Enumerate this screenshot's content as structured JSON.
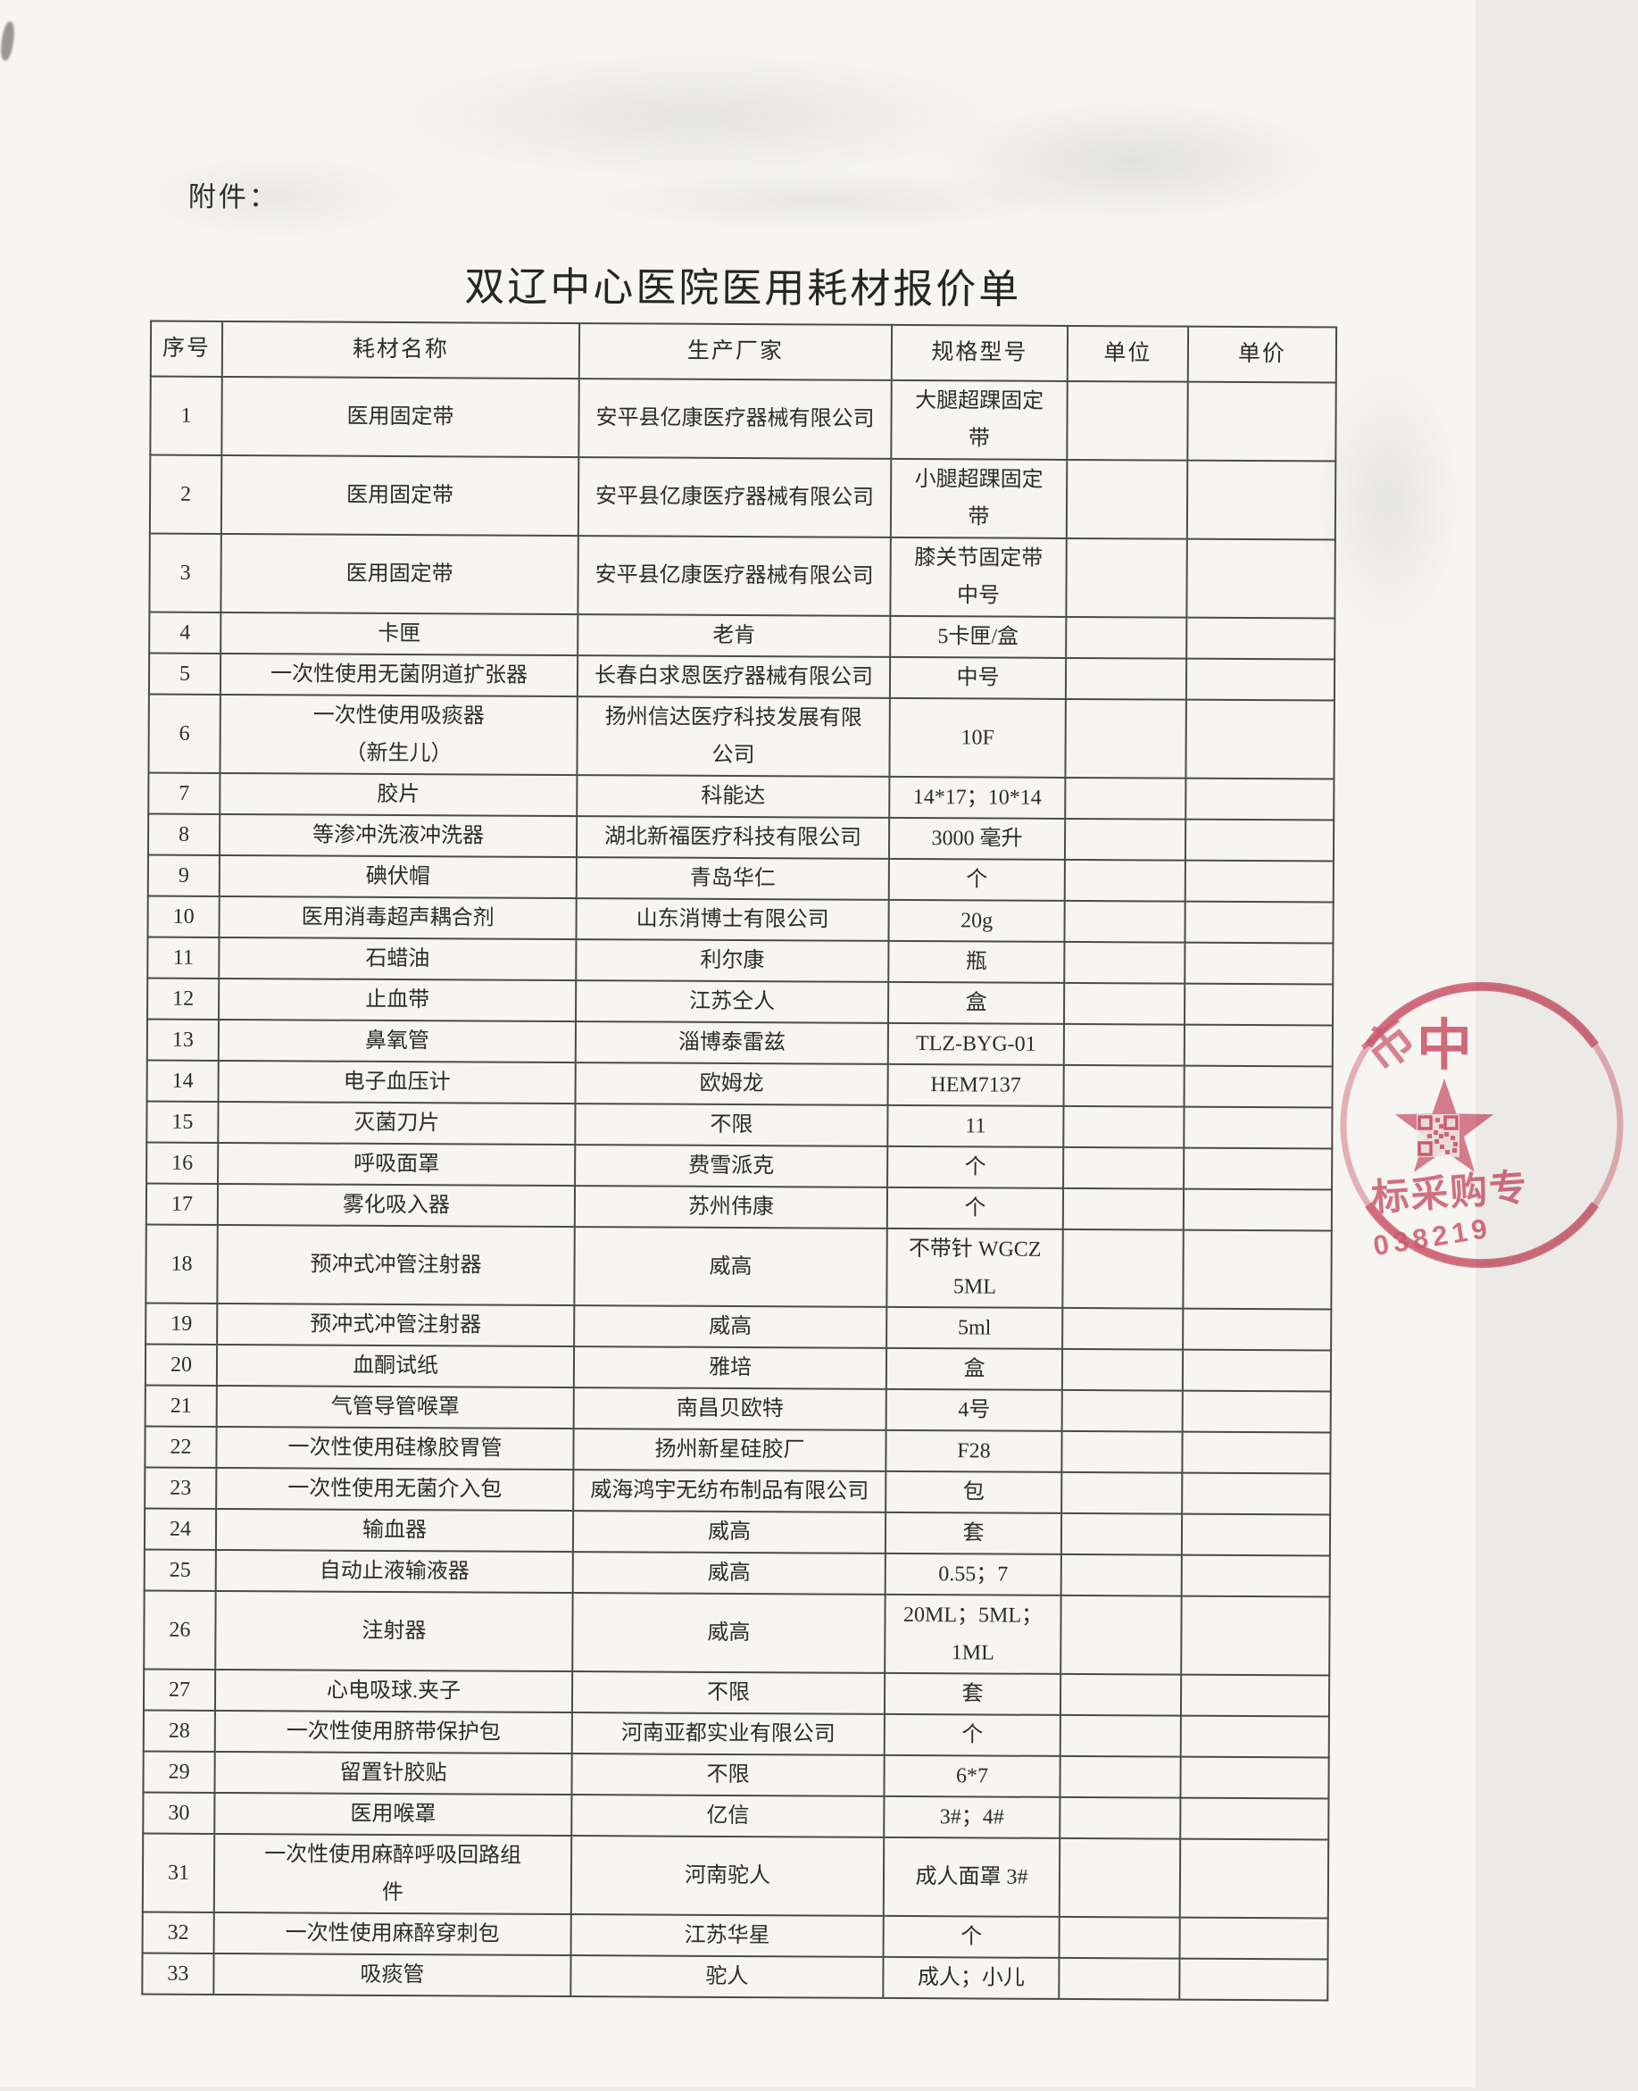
{
  "document": {
    "attachment_label": "附件：",
    "title": "双辽中心医院医用耗材报价单"
  },
  "table": {
    "headers": {
      "no": "序号",
      "name": "耗材名称",
      "manufacturer": "生产厂家",
      "spec": "规格型号",
      "unit": "单位",
      "price": "单价"
    },
    "rows": [
      {
        "no": "1",
        "name": "医用固定带",
        "manufacturer": "安平县亿康医疗器械有限公司",
        "spec": "大腿超踝固定\n带",
        "unit": "",
        "price": ""
      },
      {
        "no": "2",
        "name": "医用固定带",
        "manufacturer": "安平县亿康医疗器械有限公司",
        "spec": "小腿超踝固定\n带",
        "unit": "",
        "price": ""
      },
      {
        "no": "3",
        "name": "医用固定带",
        "manufacturer": "安平县亿康医疗器械有限公司",
        "spec": "膝关节固定带\n中号",
        "unit": "",
        "price": ""
      },
      {
        "no": "4",
        "name": "卡匣",
        "manufacturer": "老肯",
        "spec": "5卡匣/盒",
        "unit": "",
        "price": ""
      },
      {
        "no": "5",
        "name": "一次性使用无菌阴道扩张器",
        "manufacturer": "长春白求恩医疗器械有限公司",
        "spec": "中号",
        "unit": "",
        "price": ""
      },
      {
        "no": "6",
        "name": "一次性使用吸痰器\n（新生儿）",
        "manufacturer": "扬州信达医疗科技发展有限\n公司",
        "spec": "10F",
        "unit": "",
        "price": ""
      },
      {
        "no": "7",
        "name": "胶片",
        "manufacturer": "科能达",
        "spec": "14*17；10*14",
        "unit": "",
        "price": ""
      },
      {
        "no": "8",
        "name": "等渗冲洗液冲洗器",
        "manufacturer": "湖北新福医疗科技有限公司",
        "spec": "3000 毫升",
        "unit": "",
        "price": ""
      },
      {
        "no": "9",
        "name": "碘伏帽",
        "manufacturer": "青岛华仁",
        "spec": "个",
        "unit": "",
        "price": ""
      },
      {
        "no": "10",
        "name": "医用消毒超声耦合剂",
        "manufacturer": "山东消博士有限公司",
        "spec": "20g",
        "unit": "",
        "price": ""
      },
      {
        "no": "11",
        "name": "石蜡油",
        "manufacturer": "利尔康",
        "spec": "瓶",
        "unit": "",
        "price": ""
      },
      {
        "no": "12",
        "name": "止血带",
        "manufacturer": "江苏仝人",
        "spec": "盒",
        "unit": "",
        "price": ""
      },
      {
        "no": "13",
        "name": "鼻氧管",
        "manufacturer": "淄博泰雷兹",
        "spec": "TLZ-BYG-01",
        "unit": "",
        "price": ""
      },
      {
        "no": "14",
        "name": "电子血压计",
        "manufacturer": "欧姆龙",
        "spec": "HEM7137",
        "unit": "",
        "price": ""
      },
      {
        "no": "15",
        "name": "灭菌刀片",
        "manufacturer": "不限",
        "spec": "11",
        "unit": "",
        "price": ""
      },
      {
        "no": "16",
        "name": "呼吸面罩",
        "manufacturer": "费雪派克",
        "spec": "个",
        "unit": "",
        "price": ""
      },
      {
        "no": "17",
        "name": "雾化吸入器",
        "manufacturer": "苏州伟康",
        "spec": "个",
        "unit": "",
        "price": ""
      },
      {
        "no": "18",
        "name": "预冲式冲管注射器",
        "manufacturer": "威高",
        "spec": "不带针 WGCZ 5ML",
        "unit": "",
        "price": ""
      },
      {
        "no": "19",
        "name": "预冲式冲管注射器",
        "manufacturer": "威高",
        "spec": "5ml",
        "unit": "",
        "price": ""
      },
      {
        "no": "20",
        "name": "血酮试纸",
        "manufacturer": "雅培",
        "spec": "盒",
        "unit": "",
        "price": ""
      },
      {
        "no": "21",
        "name": "气管导管喉罩",
        "manufacturer": "南昌贝欧特",
        "spec": "4号",
        "unit": "",
        "price": ""
      },
      {
        "no": "22",
        "name": "一次性使用硅橡胶胃管",
        "manufacturer": "扬州新星硅胶厂",
        "spec": "F28",
        "unit": "",
        "price": ""
      },
      {
        "no": "23",
        "name": "一次性使用无菌介入包",
        "manufacturer": "威海鸿宇无纺布制品有限公司",
        "spec": "包",
        "unit": "",
        "price": ""
      },
      {
        "no": "24",
        "name": "输血器",
        "manufacturer": "威高",
        "spec": "套",
        "unit": "",
        "price": ""
      },
      {
        "no": "25",
        "name": "自动止液输液器",
        "manufacturer": "威高",
        "spec": "0.55；7",
        "unit": "",
        "price": ""
      },
      {
        "no": "26",
        "name": "注射器",
        "manufacturer": "威高",
        "spec": "20ML；5ML；1ML",
        "unit": "",
        "price": ""
      },
      {
        "no": "27",
        "name": "心电吸球.夹子",
        "manufacturer": "不限",
        "spec": "套",
        "unit": "",
        "price": ""
      },
      {
        "no": "28",
        "name": "一次性使用脐带保护包",
        "manufacturer": "河南亚都实业有限公司",
        "spec": "个",
        "unit": "",
        "price": ""
      },
      {
        "no": "29",
        "name": "留置针胶贴",
        "manufacturer": "不限",
        "spec": "6*7",
        "unit": "",
        "price": ""
      },
      {
        "no": "30",
        "name": "医用喉罩",
        "manufacturer": "亿信",
        "spec": "3#；4#",
        "unit": "",
        "price": ""
      },
      {
        "no": "31",
        "name": "一次性使用麻醉呼吸回路组\n件",
        "manufacturer": "河南驼人",
        "spec": "成人面罩 3#",
        "unit": "",
        "price": ""
      },
      {
        "no": "32",
        "name": "一次性使用麻醉穿刺包",
        "manufacturer": "江苏华星",
        "spec": "个",
        "unit": "",
        "price": ""
      },
      {
        "no": "33",
        "name": "吸痰管",
        "manufacturer": "驼人",
        "spec": "成人；小儿",
        "unit": "",
        "price": ""
      }
    ]
  },
  "stamp": {
    "color": "#cf4f66",
    "char_top": "中",
    "char_side": "市",
    "text_line": "标采购专",
    "number_line": "038219"
  }
}
